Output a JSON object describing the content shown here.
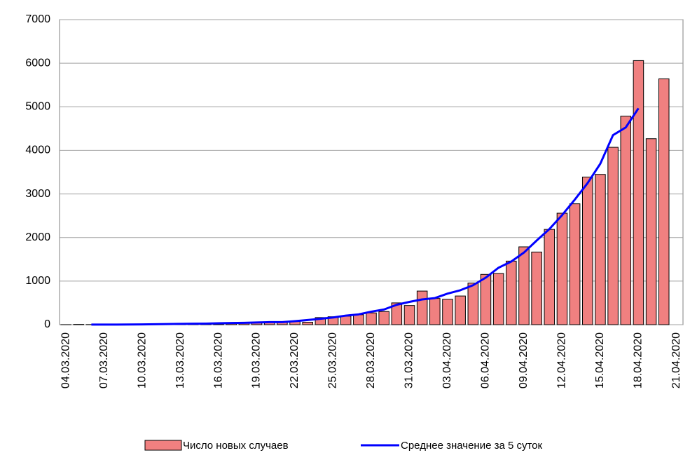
{
  "chart_data": {
    "type": "bar_line",
    "categories": [
      "04.03.2020",
      null,
      null,
      "07.03.2020",
      null,
      null,
      "10.03.2020",
      null,
      null,
      "13.03.2020",
      null,
      null,
      "16.03.2020",
      null,
      null,
      "19.03.2020",
      null,
      null,
      "22.03.2020",
      null,
      null,
      "25.03.2020",
      null,
      null,
      "28.03.2020",
      null,
      null,
      "31.03.2020",
      null,
      null,
      "03.04.2020",
      null,
      null,
      "06.04.2020",
      null,
      null,
      "09.04.2020",
      null,
      null,
      "12.04.2020",
      null,
      null,
      "15.04.2020",
      null,
      null,
      "18.04.2020",
      null,
      null,
      "21.04.2020"
    ],
    "series": [
      {
        "name": "Число  новых случаев",
        "type": "bar",
        "color": "#f08080",
        "values": [
          1,
          6,
          3,
          0,
          3,
          3,
          8,
          6,
          17,
          14,
          29,
          30,
          21,
          33,
          52,
          54,
          53,
          61,
          71,
          57,
          163,
          182,
          196,
          228,
          270,
          302,
          500,
          440,
          771,
          601,
          582,
          658,
          954,
          1154,
          1175,
          1459,
          1786,
          1667,
          2186,
          2558,
          2774,
          3388,
          3448,
          4070,
          4785,
          6060,
          4268,
          5642,
          null
        ]
      },
      {
        "name": "Среднее  значение за 5 суток",
        "type": "line",
        "color": "#0000ff",
        "values": [
          null,
          null,
          3,
          3,
          3,
          4,
          7,
          10,
          15,
          19,
          22,
          25,
          33,
          38,
          43,
          51,
          58,
          59,
          81,
          107,
          134,
          165,
          208,
          236,
          299,
          348,
          457,
          523,
          579,
          610,
          713,
          790,
          905,
          1080,
          1306,
          1448,
          1655,
          1931,
          2194,
          2515,
          2871,
          3248,
          3693,
          4350,
          4526,
          4965,
          null,
          null,
          null
        ]
      }
    ],
    "ylim": [
      0,
      7000
    ],
    "yticks": [
      0,
      1000,
      2000,
      3000,
      4000,
      5000,
      6000,
      7000
    ],
    "grid": true
  }
}
